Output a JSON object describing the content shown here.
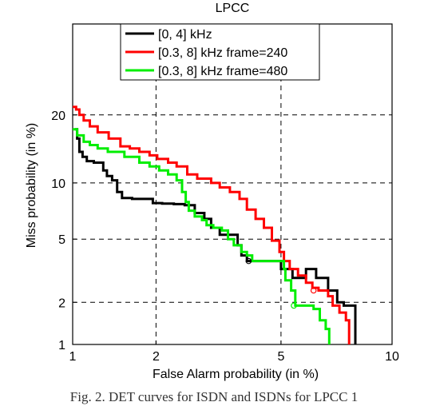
{
  "chart_data": {
    "type": "line",
    "title": "LPCC",
    "xlabel": "False Alarm probability (in %)",
    "ylabel": "Miss probability (in %)",
    "xscale": "normal-deviate (probit)",
    "yscale": "normal-deviate (probit)",
    "xlim": [
      1,
      10
    ],
    "ylim": [
      1,
      40
    ],
    "xticks": [
      1,
      2,
      5,
      10
    ],
    "yticks": [
      1,
      2,
      5,
      10,
      20
    ],
    "grid": "dashed, at ticks",
    "legend_position": "top",
    "series": [
      {
        "name": "[0, 4] kHz",
        "color": "#000000",
        "points": [
          [
            1.02,
            17.5
          ],
          [
            1.04,
            16
          ],
          [
            1.06,
            14
          ],
          [
            1.09,
            13.3
          ],
          [
            1.13,
            12.7
          ],
          [
            1.2,
            12.5
          ],
          [
            1.3,
            11.5
          ],
          [
            1.34,
            10.8
          ],
          [
            1.4,
            10.3
          ],
          [
            1.46,
            9.0
          ],
          [
            1.52,
            8.4
          ],
          [
            1.65,
            8.3
          ],
          [
            1.8,
            8.3
          ],
          [
            1.95,
            7.9
          ],
          [
            2.1,
            7.85
          ],
          [
            2.3,
            7.8
          ],
          [
            2.5,
            7.7
          ],
          [
            2.7,
            7.0
          ],
          [
            2.9,
            6.5
          ],
          [
            3.05,
            5.8
          ],
          [
            3.25,
            5.3
          ],
          [
            3.55,
            5.3
          ],
          [
            3.7,
            4.6
          ],
          [
            3.8,
            4.0
          ],
          [
            3.95,
            3.7
          ],
          [
            4.15,
            3.7
          ],
          [
            4.7,
            3.7
          ],
          [
            5.0,
            3.3
          ],
          [
            5.4,
            2.9
          ],
          [
            5.9,
            3.3
          ],
          [
            6.3,
            2.9
          ],
          [
            6.8,
            2.4
          ],
          [
            7.2,
            2.0
          ],
          [
            7.5,
            1.9
          ],
          [
            7.9,
            1.9
          ],
          [
            8.05,
            1.0
          ]
        ],
        "marker": [
          4.0,
          3.7
        ]
      },
      {
        "name": "[0.3, 8] kHz frame=240",
        "color": "#ff0000",
        "points": [
          [
            1.0,
            21.5
          ],
          [
            1.03,
            21
          ],
          [
            1.06,
            20
          ],
          [
            1.1,
            19
          ],
          [
            1.16,
            18
          ],
          [
            1.24,
            17
          ],
          [
            1.36,
            16
          ],
          [
            1.5,
            14.8
          ],
          [
            1.62,
            14.5
          ],
          [
            1.75,
            14.0
          ],
          [
            1.9,
            13.5
          ],
          [
            2.02,
            13.0
          ],
          [
            2.2,
            12.5
          ],
          [
            2.35,
            12.0
          ],
          [
            2.55,
            11.0
          ],
          [
            2.75,
            10.5
          ],
          [
            3.05,
            10.0
          ],
          [
            3.25,
            9.5
          ],
          [
            3.5,
            9.0
          ],
          [
            3.75,
            8.3
          ],
          [
            3.95,
            7.3
          ],
          [
            4.2,
            6.5
          ],
          [
            4.45,
            5.8
          ],
          [
            4.7,
            4.9
          ],
          [
            4.95,
            4.2
          ],
          [
            5.1,
            3.7
          ],
          [
            5.3,
            3.3
          ],
          [
            5.6,
            3.0
          ],
          [
            5.9,
            2.7
          ],
          [
            6.15,
            2.5
          ],
          [
            6.4,
            2.4
          ],
          [
            6.8,
            2.2
          ],
          [
            7.0,
            1.9
          ],
          [
            7.3,
            1.7
          ],
          [
            7.6,
            1.5
          ],
          [
            7.75,
            1.0
          ]
        ],
        "marker": [
          6.2,
          2.4
        ]
      },
      {
        "name": "[0.3, 8] kHz frame=480",
        "color": "#00ee00",
        "points": [
          [
            1.0,
            17.5
          ],
          [
            1.04,
            16.5
          ],
          [
            1.1,
            15.5
          ],
          [
            1.16,
            15.0
          ],
          [
            1.24,
            14.5
          ],
          [
            1.35,
            14.0
          ],
          [
            1.55,
            13.3
          ],
          [
            1.75,
            12.5
          ],
          [
            1.9,
            12.0
          ],
          [
            2.05,
            11.5
          ],
          [
            2.2,
            11.0
          ],
          [
            2.35,
            10.3
          ],
          [
            2.45,
            9.0
          ],
          [
            2.52,
            8.0
          ],
          [
            2.58,
            7.2
          ],
          [
            2.7,
            6.7
          ],
          [
            2.85,
            6.4
          ],
          [
            2.95,
            6.0
          ],
          [
            3.1,
            5.8
          ],
          [
            3.3,
            5.6
          ],
          [
            3.45,
            5.0
          ],
          [
            3.6,
            4.6
          ],
          [
            3.8,
            4.2
          ],
          [
            3.95,
            4.0
          ],
          [
            4.1,
            3.7
          ],
          [
            4.5,
            3.7
          ],
          [
            4.95,
            3.7
          ],
          [
            5.1,
            3.3
          ],
          [
            5.15,
            2.8
          ],
          [
            5.35,
            2.4
          ],
          [
            5.5,
            1.9
          ],
          [
            5.9,
            1.9
          ],
          [
            6.2,
            1.8
          ],
          [
            6.45,
            1.5
          ],
          [
            6.7,
            1.3
          ],
          [
            6.85,
            1.0
          ]
        ],
        "marker": [
          5.45,
          1.9
        ]
      }
    ]
  },
  "caption": "Fig. 2. DET curves for ISDN and ISDNs for LPCC 1"
}
